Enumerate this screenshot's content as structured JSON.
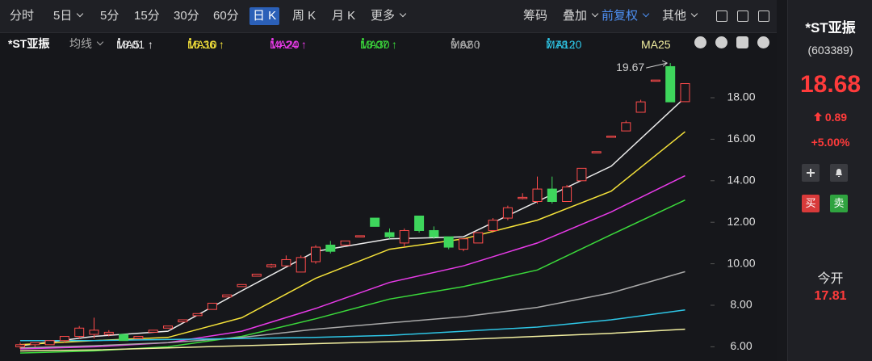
{
  "toolbar": {
    "periods": [
      "分时",
      "5日",
      "5分",
      "15分",
      "30分",
      "60分",
      "日 K",
      "周 K",
      "月 K",
      "更多"
    ],
    "tools": [
      "筹码",
      "叠加",
      "前复权",
      "其他"
    ]
  },
  "chart_header": {
    "name": "*ST亚振",
    "ma_menu": "均线"
  },
  "stock": {
    "name": "*ST亚振",
    "code": "(603389)",
    "price": "18.68",
    "change": "0.89",
    "change_pct": "+5.00%",
    "buy": "买",
    "sell": "卖",
    "open_label": "今开",
    "open": "17.81"
  },
  "chart_data": {
    "type": "candlestick",
    "up_color": "#ff4b4b",
    "down_color": "#3ed65c",
    "open": [
      6.0,
      6.1,
      6.1,
      6.3,
      6.5,
      6.6,
      6.6,
      6.6,
      6.4,
      6.7,
      6.9,
      7.2,
      7.5,
      7.8,
      8.4,
      8.9,
      9.4,
      9.85,
      9.9,
      9.6,
      10.1,
      10.9,
      10.9,
      11.3,
      12.2,
      11.5,
      11.0,
      12.3,
      11.6,
      11.3,
      10.7,
      11.0,
      11.6,
      12.2,
      13.15,
      13.0,
      13.6,
      13.0,
      14.0,
      15.35,
      16.1,
      16.4,
      17.3,
      18.8,
      19.5,
      17.81
    ],
    "close": [
      6.1,
      6.2,
      6.3,
      6.5,
      6.9,
      6.8,
      6.7,
      6.3,
      6.5,
      6.8,
      7.0,
      7.3,
      7.6,
      8.1,
      8.5,
      9.0,
      9.5,
      9.95,
      10.2,
      10.3,
      10.8,
      10.6,
      11.1,
      11.35,
      11.8,
      11.3,
      11.6,
      11.6,
      11.3,
      10.8,
      11.2,
      11.5,
      12.1,
      12.7,
      13.2,
      13.6,
      13.0,
      13.7,
      14.6,
      15.4,
      16.15,
      16.8,
      17.8,
      18.85,
      17.8,
      18.68
    ],
    "high": [
      6.2,
      6.2,
      6.3,
      6.5,
      7.0,
      7.4,
      6.8,
      6.6,
      6.5,
      6.8,
      7.0,
      7.3,
      7.6,
      8.1,
      8.5,
      9.0,
      9.5,
      10.0,
      10.4,
      10.4,
      10.9,
      11.1,
      11.1,
      11.35,
      12.2,
      11.7,
      11.7,
      12.3,
      11.8,
      11.3,
      11.2,
      11.5,
      12.2,
      12.8,
      13.4,
      14.2,
      14.2,
      13.8,
      14.6,
      15.4,
      16.15,
      16.9,
      17.9,
      18.85,
      19.67,
      18.7
    ],
    "low": [
      5.9,
      6.0,
      6.1,
      6.2,
      6.4,
      6.4,
      6.5,
      6.3,
      6.4,
      6.7,
      6.9,
      7.2,
      7.5,
      7.8,
      8.4,
      8.9,
      9.4,
      9.8,
      9.9,
      9.6,
      10.0,
      10.5,
      10.9,
      11.3,
      11.8,
      11.2,
      10.8,
      11.5,
      11.2,
      10.7,
      10.6,
      11.0,
      11.5,
      12.1,
      13.1,
      12.9,
      12.9,
      13.0,
      14.0,
      15.35,
      16.1,
      16.4,
      17.3,
      18.8,
      17.8,
      17.8
    ],
    "annotation": "19.67",
    "ma_x": [
      0,
      5,
      10,
      15,
      20,
      25,
      30,
      35,
      40,
      45
    ],
    "series": [
      {
        "name": "MA5",
        "color": "#ececec",
        "legend_value": "18.01 ↑",
        "values": [
          6.05,
          6.5,
          6.75,
          8.7,
          10.6,
          11.2,
          11.3,
          13.0,
          14.7,
          18.01
        ]
      },
      {
        "name": "MA10",
        "color": "#f5e23a",
        "legend_value": "16.36 ↑",
        "values": [
          6.1,
          6.3,
          6.45,
          7.4,
          9.3,
          10.7,
          11.2,
          12.1,
          13.5,
          16.36
        ]
      },
      {
        "name": "MA20",
        "color": "#e93be9",
        "legend_value": "14.24 ↑",
        "values": [
          5.9,
          6.0,
          6.2,
          6.75,
          7.85,
          9.1,
          9.9,
          11.0,
          12.5,
          14.24
        ]
      },
      {
        "name": "MA30",
        "color": "#3bd93b",
        "legend_value": "13.07 ↑",
        "values": [
          5.7,
          5.8,
          6.0,
          6.5,
          7.35,
          8.3,
          8.9,
          9.7,
          11.4,
          13.07
        ]
      },
      {
        "name": "MA60",
        "color": "#a9a9a9",
        "legend_value": "9.62 ↑",
        "values": [
          5.95,
          6.05,
          6.2,
          6.45,
          6.85,
          7.15,
          7.45,
          7.9,
          8.6,
          9.62
        ]
      },
      {
        "name": "MA120",
        "color": "#2ec6e6",
        "legend_value": "7.78 ↑",
        "values": [
          6.3,
          6.3,
          6.35,
          6.4,
          6.45,
          6.55,
          6.75,
          6.95,
          7.3,
          7.78
        ]
      },
      {
        "name": "MA25",
        "color": "#f2efa0",
        "values": [
          5.8,
          5.85,
          5.95,
          6.05,
          6.15,
          6.25,
          6.35,
          6.5,
          6.65,
          6.85
        ]
      }
    ],
    "ylim": [
      5.3,
      20.1
    ],
    "yticks": [
      {
        "value": 6,
        "label": "6.00"
      },
      {
        "value": 8,
        "label": "8.00"
      },
      {
        "value": 10,
        "label": "10.00"
      },
      {
        "value": 12,
        "label": "12.00"
      },
      {
        "value": 14,
        "label": "14.00"
      },
      {
        "value": 16,
        "label": "16.00"
      },
      {
        "value": 18,
        "label": "18.00"
      }
    ]
  }
}
